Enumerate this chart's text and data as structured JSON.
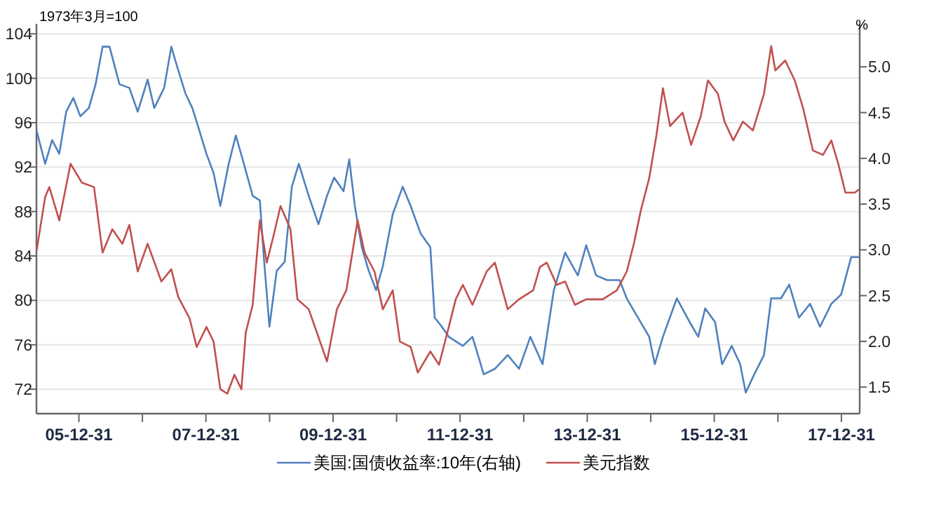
{
  "chart_data": {
    "type": "line",
    "ylabel": "1973年3月=100",
    "y2label": "%",
    "xlim": [
      "2005-05-01",
      "2018-04-15"
    ],
    "xticks": [
      {
        "value": "2005-12-31",
        "label": "05-12-31"
      },
      {
        "value": "2006-12-31",
        "label": null
      },
      {
        "value": "2007-12-31",
        "label": "07-12-31"
      },
      {
        "value": "2008-12-31",
        "label": null
      },
      {
        "value": "2009-12-31",
        "label": "09-12-31"
      },
      {
        "value": "2010-12-31",
        "label": null
      },
      {
        "value": "2011-12-31",
        "label": "11-12-31"
      },
      {
        "value": "2012-12-31",
        "label": null
      },
      {
        "value": "2013-12-31",
        "label": "13-12-31"
      },
      {
        "value": "2014-12-31",
        "label": null
      },
      {
        "value": "2015-12-31",
        "label": "15-12-31"
      },
      {
        "value": "2016-12-31",
        "label": null
      },
      {
        "value": "2017-12-31",
        "label": "17-12-31"
      }
    ],
    "ylim": [
      69.8,
      104.9
    ],
    "yticks": [
      72,
      76,
      80,
      84,
      88,
      92,
      96,
      100,
      104
    ],
    "y2lim": [
      1.21,
      5.47
    ],
    "y2ticks": [
      1.5,
      {
        "value": 2,
        "label": "2.0"
      },
      2.5,
      {
        "value": 3,
        "label": "3.0"
      },
      3.5,
      {
        "value": 4,
        "label": "4.0"
      },
      4.5,
      {
        "value": 5,
        "label": "5.0"
      }
    ],
    "grid": "y",
    "legend": "bottom",
    "marker": "none",
    "line_style": "solid",
    "series": [
      {
        "name": "美国:国债收益率:10年(右轴)",
        "color": "#4f81bd",
        "axis": "y2",
        "x": [
          "2005-05-02",
          "2005-06-20",
          "2005-07-30",
          "2005-09-09",
          "2005-10-19",
          "2005-11-29",
          "2006-01-08",
          "2006-02-26",
          "2006-04-06",
          "2006-05-16",
          "2006-06-25",
          "2006-08-21",
          "2006-10-17",
          "2006-12-04",
          "2007-01-30",
          "2007-03-09",
          "2007-05-05",
          "2007-06-15",
          "2007-07-08",
          "2007-09-04",
          "2007-10-14",
          "2007-11-24",
          "2008-01-03",
          "2008-02-13",
          "2008-03-23",
          "2008-05-10",
          "2008-06-20",
          "2008-07-29",
          "2008-09-25",
          "2008-11-05",
          "2008-11-28",
          "2008-12-30",
          "2009-02-10",
          "2009-03-28",
          "2009-05-08",
          "2009-06-17",
          "2009-08-13",
          "2009-10-08",
          "2009-11-26",
          "2010-01-06",
          "2010-03-01",
          "2010-04-03",
          "2010-05-05",
          "2010-06-14",
          "2010-07-24",
          "2010-09-04",
          "2010-10-13",
          "2010-12-09",
          "2011-02-04",
          "2011-03-22",
          "2011-05-18",
          "2011-07-13",
          "2011-08-07",
          "2011-09-17",
          "2011-10-27",
          "2012-01-16",
          "2012-03-11",
          "2012-05-15",
          "2012-07-18",
          "2012-09-30",
          "2012-12-04",
          "2013-02-07",
          "2013-04-18",
          "2013-06-22",
          "2013-08-26",
          "2013-11-07",
          "2013-12-25",
          "2014-02-20",
          "2014-04-24",
          "2014-07-05",
          "2014-08-15",
          "2014-10-18",
          "2014-12-22",
          "2015-01-23",
          "2015-03-11",
          "2015-05-30",
          "2015-08-12",
          "2015-09-30",
          "2015-11-09",
          "2016-01-05",
          "2016-02-14",
          "2016-04-10",
          "2016-05-28",
          "2016-06-29",
          "2016-08-17",
          "2016-10-12",
          "2016-11-22",
          "2017-01-18",
          "2017-03-06",
          "2017-05-01",
          "2017-07-04",
          "2017-08-30",
          "2017-11-03",
          "2017-12-29",
          "2018-02-25",
          "2018-04-12"
        ],
        "values": [
          4.3,
          3.94,
          4.2,
          4.05,
          4.51,
          4.66,
          4.46,
          4.55,
          4.81,
          5.22,
          5.22,
          4.81,
          4.77,
          4.51,
          4.86,
          4.55,
          4.77,
          5.22,
          5.07,
          4.71,
          4.55,
          4.3,
          4.05,
          3.84,
          3.48,
          3.94,
          4.25,
          3.99,
          3.59,
          3.54,
          2.92,
          2.16,
          2.77,
          2.87,
          3.69,
          3.94,
          3.59,
          3.28,
          3.59,
          3.79,
          3.64,
          3.99,
          3.48,
          3.03,
          2.77,
          2.56,
          2.82,
          3.39,
          3.69,
          3.48,
          3.18,
          3.03,
          2.26,
          2.16,
          2.05,
          1.95,
          2.05,
          1.64,
          1.7,
          1.85,
          1.7,
          2.05,
          1.75,
          2.56,
          2.97,
          2.72,
          3.05,
          2.72,
          2.67,
          2.67,
          2.47,
          2.26,
          2.05,
          1.75,
          2.05,
          2.47,
          2.21,
          2.05,
          2.36,
          2.21,
          1.75,
          1.95,
          1.75,
          1.44,
          1.64,
          1.85,
          2.47,
          2.47,
          2.62,
          2.26,
          2.41,
          2.16,
          2.41,
          2.51,
          2.92,
          2.92
        ]
      },
      {
        "name": "美元指数",
        "color": "#c0504d",
        "x": [
          "2005-05-02",
          "2005-06-20",
          "2005-07-14",
          "2005-09-09",
          "2005-11-13",
          "2006-01-17",
          "2006-03-28",
          "2006-05-16",
          "2006-07-11",
          "2006-09-07",
          "2006-10-17",
          "2006-12-04",
          "2007-01-30",
          "2007-04-19",
          "2007-06-15",
          "2007-07-25",
          "2007-09-28",
          "2007-11-08",
          "2008-01-03",
          "2008-02-13",
          "2008-03-23",
          "2008-05-02",
          "2008-06-12",
          "2008-07-22",
          "2008-08-16",
          "2008-09-25",
          "2008-11-05",
          "2008-12-15",
          "2009-01-24",
          "2009-03-04",
          "2009-04-30",
          "2009-06-09",
          "2009-08-13",
          "2009-10-08",
          "2009-11-26",
          "2010-01-22",
          "2010-03-17",
          "2010-05-21",
          "2010-06-30",
          "2010-08-26",
          "2010-10-13",
          "2010-12-09",
          "2011-01-19",
          "2011-03-22",
          "2011-05-02",
          "2011-07-13",
          "2011-09-01",
          "2011-10-27",
          "2011-12-06",
          "2012-01-16",
          "2012-03-11",
          "2012-06-01",
          "2012-07-18",
          "2012-09-30",
          "2012-12-04",
          "2013-02-23",
          "2013-04-03",
          "2013-05-12",
          "2013-07-08",
          "2013-08-26",
          "2013-10-21",
          "2013-12-25",
          "2014-03-30",
          "2014-06-19",
          "2014-08-15",
          "2014-09-25",
          "2014-11-04",
          "2014-12-22",
          "2015-02-01",
          "2015-03-11",
          "2015-04-21",
          "2015-07-02",
          "2015-08-20",
          "2015-10-15",
          "2015-11-25",
          "2016-01-21",
          "2016-02-28",
          "2016-04-18",
          "2016-06-13",
          "2016-08-09",
          "2016-10-12",
          "2016-11-22",
          "2016-12-16",
          "2017-02-11",
          "2017-04-07",
          "2017-05-25",
          "2017-07-20",
          "2017-09-16",
          "2017-11-03",
          "2017-12-13",
          "2018-01-23",
          "2018-03-18",
          "2018-04-12"
        ],
        "values": [
          84.5,
          89.3,
          90.2,
          87.2,
          92.3,
          90.6,
          90.2,
          84.3,
          86.4,
          85.1,
          86.8,
          82.6,
          85.1,
          81.7,
          82.8,
          80.3,
          78.4,
          75.8,
          77.6,
          76.3,
          72.0,
          71.6,
          73.3,
          72.0,
          77.1,
          79.6,
          87.2,
          83.4,
          85.9,
          88.5,
          86.4,
          80.1,
          79.2,
          76.7,
          74.5,
          79.2,
          80.9,
          87.2,
          84.3,
          82.6,
          79.2,
          80.9,
          76.3,
          75.8,
          73.5,
          75.4,
          74.2,
          77.6,
          80.1,
          81.4,
          79.6,
          82.6,
          83.4,
          79.2,
          80.1,
          80.9,
          83.0,
          83.4,
          81.4,
          81.7,
          79.6,
          80.1,
          80.1,
          80.9,
          82.6,
          85.1,
          88.1,
          91.0,
          94.8,
          99.1,
          95.7,
          96.9,
          94.0,
          96.6,
          99.8,
          98.6,
          96.1,
          94.4,
          96.1,
          95.3,
          98.6,
          102.9,
          100.7,
          101.6,
          99.8,
          97.3,
          93.5,
          93.1,
          94.4,
          92.3,
          89.7,
          89.7,
          90.0
        ]
      }
    ]
  }
}
